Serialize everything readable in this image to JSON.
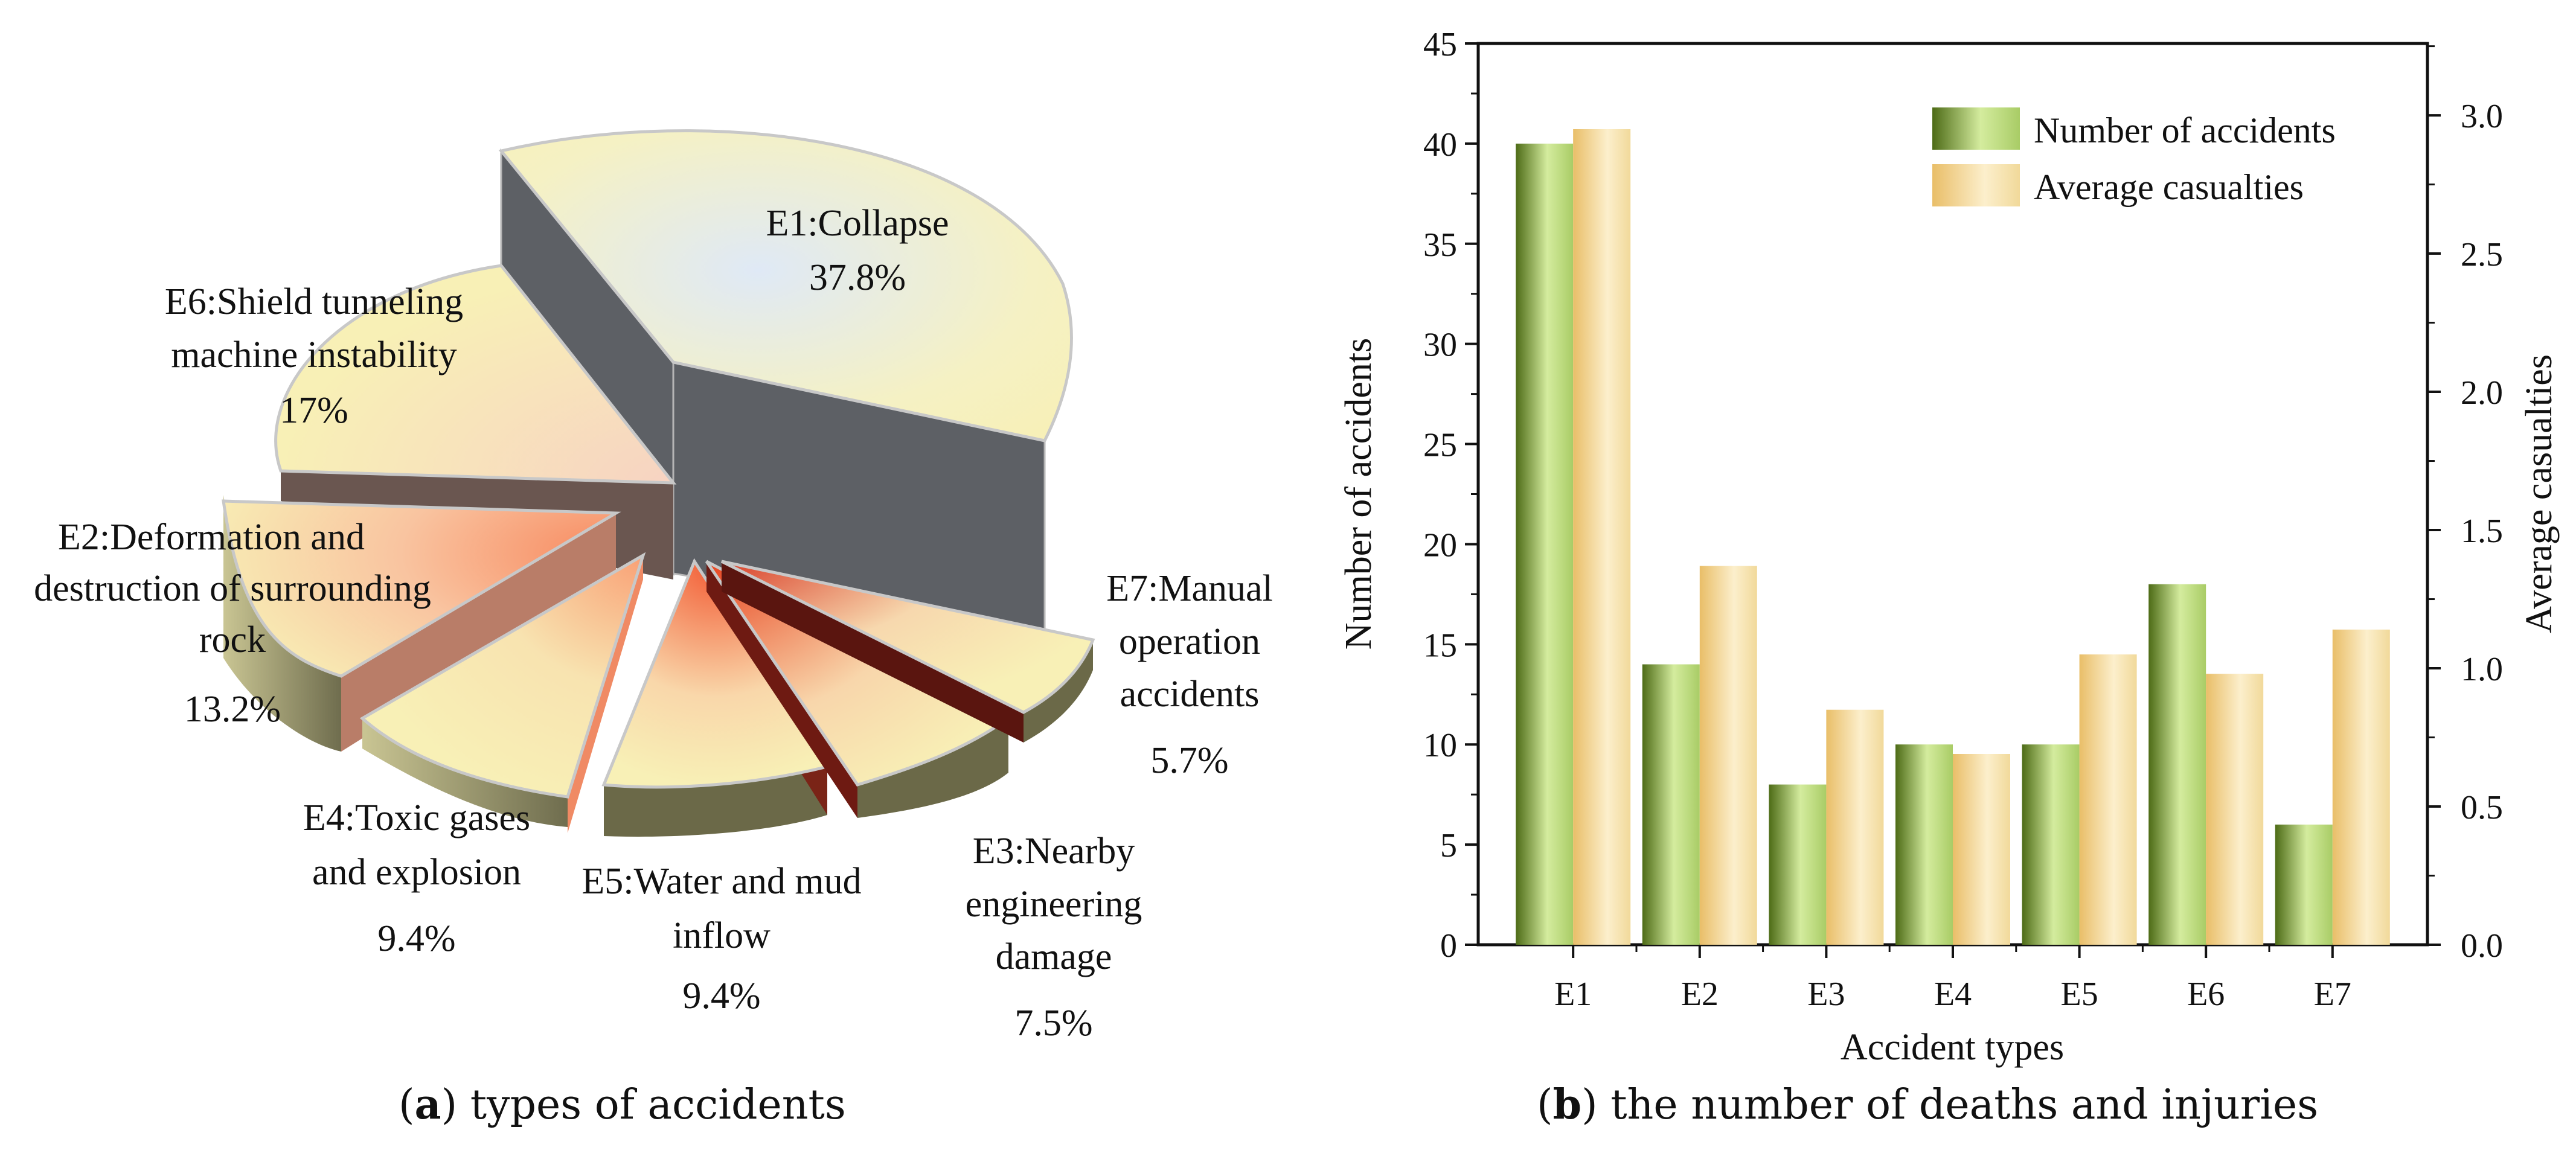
{
  "chart_data": [
    {
      "type": "pie",
      "slices": [
        {
          "label": "E1:Collapse",
          "pct": "37.8%",
          "value": 37.8
        },
        {
          "label": "E7:Manual operation accidents",
          "pct": "5.7%",
          "value": 5.7
        },
        {
          "label": "E3:Nearby engineering damage",
          "pct": "7.5%",
          "value": 7.5
        },
        {
          "label": "E5:Water and mud inflow",
          "pct": "9.4%",
          "value": 9.4
        },
        {
          "label": "E4:Toxic gases and explosion",
          "pct": "9.4%",
          "value": 9.4
        },
        {
          "label": "E2:Deformation and destruction of surrounding rock",
          "pct": "13.2%",
          "value": 13.2
        },
        {
          "label": "E6:Shield tunneling machine instability",
          "pct": "17%",
          "value": 17
        }
      ]
    },
    {
      "type": "bar",
      "categories": [
        "E1",
        "E2",
        "E3",
        "E4",
        "E5",
        "E6",
        "E7"
      ],
      "series": [
        {
          "name": "Number of accidents",
          "axis": "left",
          "values": [
            40,
            14,
            8,
            10,
            10,
            18,
            6
          ]
        },
        {
          "name": "Average casualties",
          "axis": "right",
          "values": [
            2.95,
            1.37,
            0.85,
            0.69,
            1.05,
            0.98,
            1.14
          ]
        }
      ],
      "xlabel": "Accident types",
      "ylabel": "Number of accidents",
      "y2label": "Average casualties",
      "ylim": [
        0,
        45
      ],
      "y2lim": [
        0,
        3.26
      ],
      "yticks": [
        "0",
        "5",
        "10",
        "15",
        "20",
        "25",
        "30",
        "35",
        "40",
        "45"
      ],
      "y2ticks": [
        "0.0",
        "0.5",
        "1.0",
        "1.5",
        "2.0",
        "2.5",
        "3.0"
      ],
      "legend": "top-right"
    }
  ],
  "captions": {
    "a_letter": "a",
    "a_text": " types of accidents",
    "b_letter": "b",
    "b_text": " the number of deaths and injuries"
  },
  "colors": {
    "green_dark": "#5a7a1c",
    "green_light": "#cde89a",
    "gold_dark": "#e8c070",
    "gold_light": "#fbecc4",
    "pie_top": "#f8f1b8",
    "pie_side": "#5d6065",
    "accent_red": "#d63a1c"
  }
}
